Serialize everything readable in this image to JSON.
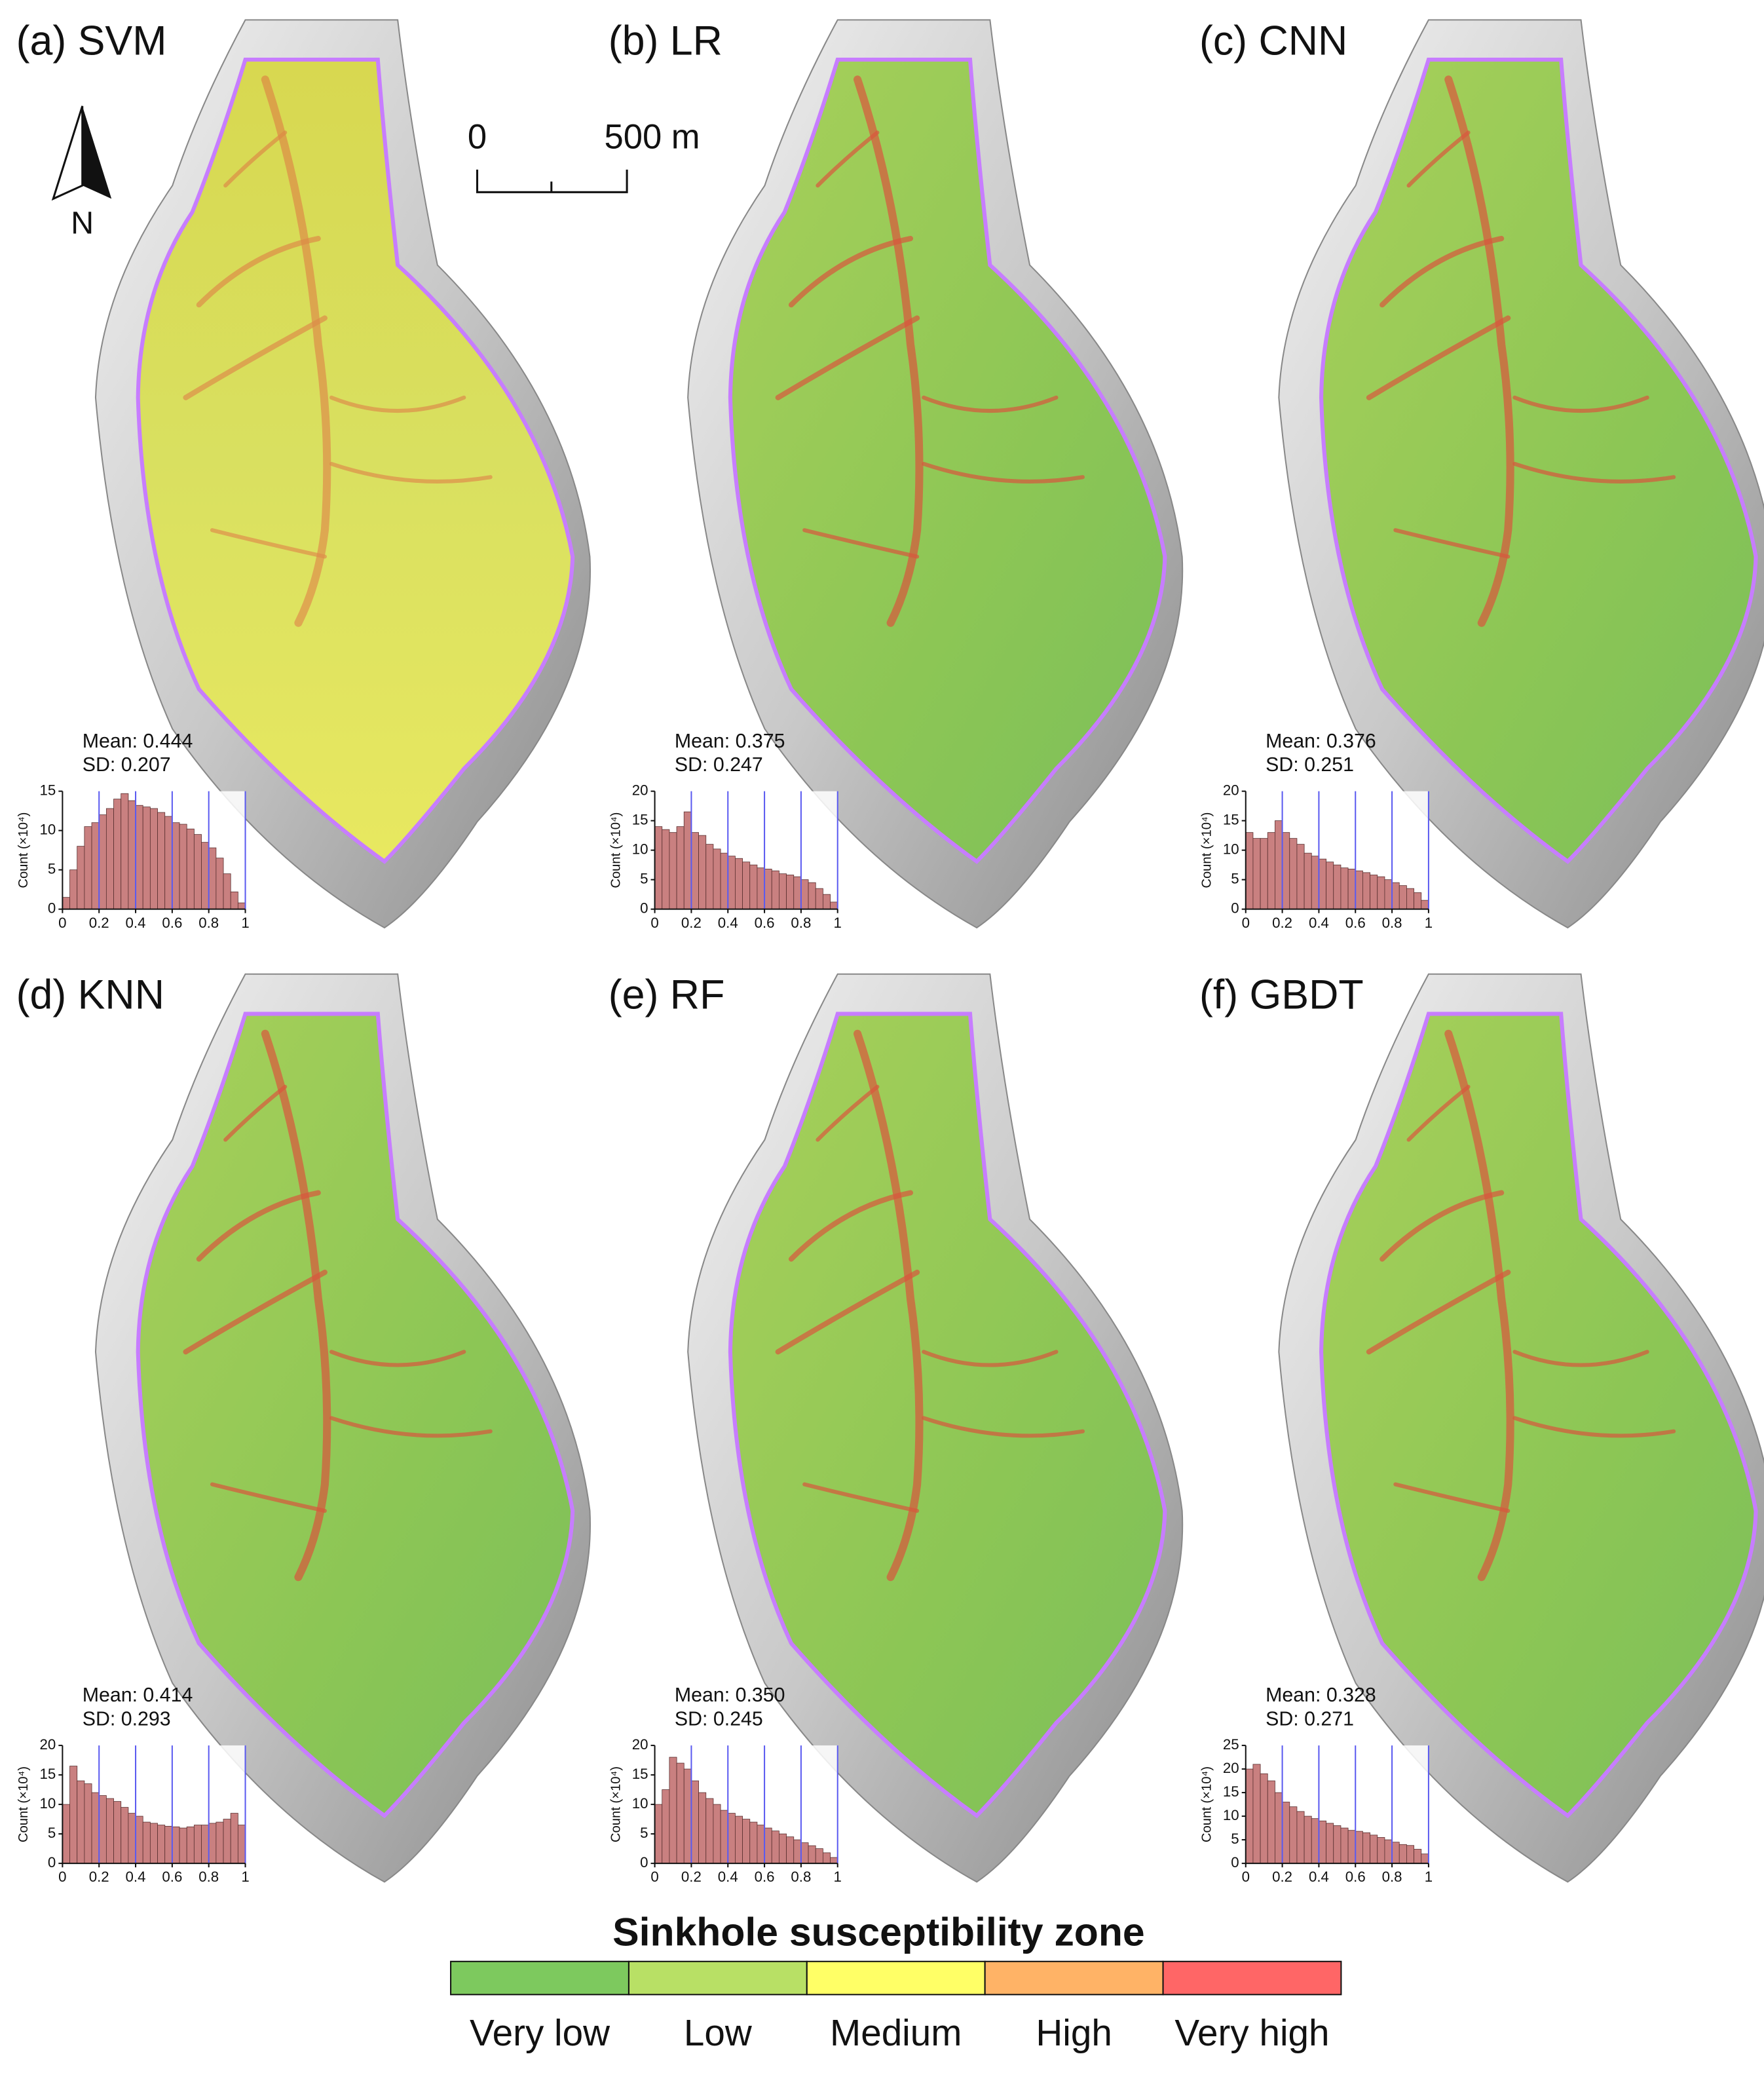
{
  "panels": [
    {
      "label": "(a) SVM",
      "mean": "Mean: 0.444",
      "sd": "SD: 0.207",
      "histogram": {
        "type": "histogram",
        "y_label": "Count (×10⁴)",
        "bins": [
          0,
          0.04,
          0.08,
          0.12,
          0.16,
          0.2,
          0.24,
          0.28,
          0.32,
          0.36,
          0.4,
          0.44,
          0.48,
          0.52,
          0.56,
          0.6,
          0.64,
          0.68,
          0.72,
          0.76,
          0.8,
          0.84,
          0.88,
          0.92,
          0.96,
          1
        ],
        "counts": [
          1.5,
          5,
          8,
          10.5,
          11,
          12,
          12.8,
          14,
          14.7,
          13.8,
          13.2,
          13,
          12.8,
          12.3,
          11.8,
          11,
          10.8,
          10.2,
          9.5,
          8.5,
          7.8,
          6.5,
          4.5,
          2.2,
          0.8
        ],
        "color": "#c98080",
        "xlim": [
          0,
          1
        ],
        "xticks": [
          0,
          0.2,
          0.4,
          0.6,
          0.8,
          1
        ],
        "ylim": [
          0,
          15
        ],
        "yticks": [
          0,
          5,
          10,
          15
        ],
        "breaks": [
          0.2,
          0.4,
          0.6,
          0.8,
          1
        ],
        "break_color": "#5a5af0"
      }
    },
    {
      "label": "(b) LR",
      "mean": "Mean: 0.375",
      "sd": "SD: 0.247",
      "histogram": {
        "type": "histogram",
        "y_label": "Count (×10⁴)",
        "bins": [
          0,
          0.04,
          0.08,
          0.12,
          0.16,
          0.2,
          0.24,
          0.28,
          0.32,
          0.36,
          0.4,
          0.44,
          0.48,
          0.52,
          0.56,
          0.6,
          0.64,
          0.68,
          0.72,
          0.76,
          0.8,
          0.84,
          0.88,
          0.92,
          0.96,
          1
        ],
        "counts": [
          14,
          13.5,
          13,
          14,
          16.5,
          13,
          12.5,
          11,
          10.2,
          9.5,
          9,
          8.6,
          8,
          7.5,
          7,
          6.8,
          6.5,
          6,
          5.8,
          5.5,
          5,
          4.5,
          3.5,
          2.5,
          1.2
        ],
        "color": "#c98080",
        "xlim": [
          0,
          1
        ],
        "xticks": [
          0,
          0.2,
          0.4,
          0.6,
          0.8,
          1
        ],
        "ylim": [
          0,
          20
        ],
        "yticks": [
          0,
          5,
          10,
          15,
          20
        ],
        "breaks": [
          0.2,
          0.4,
          0.6,
          0.8,
          1
        ],
        "break_color": "#5a5af0"
      }
    },
    {
      "label": "(c) CNN",
      "mean": "Mean: 0.376",
      "sd": "SD: 0.251",
      "histogram": {
        "type": "histogram",
        "y_label": "Count (×10⁴)",
        "bins": [
          0,
          0.04,
          0.08,
          0.12,
          0.16,
          0.2,
          0.24,
          0.28,
          0.32,
          0.36,
          0.4,
          0.44,
          0.48,
          0.52,
          0.56,
          0.6,
          0.64,
          0.68,
          0.72,
          0.76,
          0.8,
          0.84,
          0.88,
          0.92,
          0.96,
          1
        ],
        "counts": [
          13,
          12,
          12,
          13,
          15,
          13,
          12,
          11,
          9.5,
          9,
          8.5,
          8,
          7.5,
          7,
          6.8,
          6.5,
          6.2,
          5.8,
          5.5,
          5,
          4.5,
          4,
          3.5,
          2.8,
          1.5
        ],
        "color": "#c98080",
        "xlim": [
          0,
          1
        ],
        "xticks": [
          0,
          0.2,
          0.4,
          0.6,
          0.8,
          1
        ],
        "ylim": [
          0,
          20
        ],
        "yticks": [
          0,
          5,
          10,
          15,
          20
        ],
        "breaks": [
          0.2,
          0.4,
          0.6,
          0.8,
          1
        ],
        "break_color": "#5a5af0"
      }
    },
    {
      "label": "(d) KNN",
      "mean": "Mean: 0.414",
      "sd": "SD: 0.293",
      "histogram": {
        "type": "histogram",
        "y_label": "Count (×10⁴)",
        "bins": [
          0,
          0.04,
          0.08,
          0.12,
          0.16,
          0.2,
          0.24,
          0.28,
          0.32,
          0.36,
          0.4,
          0.44,
          0.48,
          0.52,
          0.56,
          0.6,
          0.64,
          0.68,
          0.72,
          0.76,
          0.8,
          0.84,
          0.88,
          0.92,
          0.96,
          1
        ],
        "counts": [
          10,
          16.5,
          14,
          13.5,
          12,
          11.5,
          11,
          10.5,
          9.5,
          8.5,
          8,
          7,
          6.8,
          6.5,
          6.3,
          6.2,
          6,
          6.2,
          6.5,
          6.5,
          6.8,
          7,
          7.5,
          8.5,
          6.5
        ],
        "color": "#c98080",
        "xlim": [
          0,
          1
        ],
        "xticks": [
          0,
          0.2,
          0.4,
          0.6,
          0.8,
          1
        ],
        "ylim": [
          0,
          20
        ],
        "yticks": [
          0,
          5,
          10,
          15,
          20
        ],
        "breaks": [
          0.2,
          0.4,
          0.6,
          0.8,
          1
        ],
        "break_color": "#5a5af0"
      }
    },
    {
      "label": "(e) RF",
      "mean": "Mean: 0.350",
      "sd": "SD: 0.245",
      "histogram": {
        "type": "histogram",
        "y_label": "Count (×10⁴)",
        "bins": [
          0,
          0.04,
          0.08,
          0.12,
          0.16,
          0.2,
          0.24,
          0.28,
          0.32,
          0.36,
          0.4,
          0.44,
          0.48,
          0.52,
          0.56,
          0.6,
          0.64,
          0.68,
          0.72,
          0.76,
          0.8,
          0.84,
          0.88,
          0.92,
          0.96,
          1
        ],
        "counts": [
          10,
          12.5,
          18,
          17,
          16,
          14,
          12,
          11,
          10,
          9,
          8.5,
          8,
          7.5,
          7,
          6.5,
          6,
          5.5,
          5,
          4.5,
          4,
          3.5,
          3,
          2.5,
          1.8,
          1
        ],
        "color": "#c98080",
        "xlim": [
          0,
          1
        ],
        "xticks": [
          0,
          0.2,
          0.4,
          0.6,
          0.8,
          1
        ],
        "ylim": [
          0,
          20
        ],
        "yticks": [
          0,
          5,
          10,
          15,
          20
        ],
        "breaks": [
          0.2,
          0.4,
          0.6,
          0.8,
          1
        ],
        "break_color": "#5a5af0"
      }
    },
    {
      "label": "(f) GBDT",
      "mean": "Mean: 0.328",
      "sd": "SD: 0.271",
      "histogram": {
        "type": "histogram",
        "y_label": "Count (×10⁴)",
        "bins": [
          0,
          0.04,
          0.08,
          0.12,
          0.16,
          0.2,
          0.24,
          0.28,
          0.32,
          0.36,
          0.4,
          0.44,
          0.48,
          0.52,
          0.56,
          0.6,
          0.64,
          0.68,
          0.72,
          0.76,
          0.8,
          0.84,
          0.88,
          0.92,
          0.96,
          1
        ],
        "counts": [
          20,
          21,
          19,
          17.5,
          15,
          13,
          12,
          11,
          10,
          9.5,
          9,
          8.5,
          8,
          7.5,
          7,
          6.8,
          6.5,
          6,
          5.5,
          5,
          4.5,
          4,
          3.8,
          3,
          2
        ],
        "color": "#c98080",
        "xlim": [
          0,
          1
        ],
        "xticks": [
          0,
          0.2,
          0.4,
          0.6,
          0.8,
          1
        ],
        "ylim": [
          0,
          25
        ],
        "yticks": [
          0,
          5,
          10,
          15,
          20,
          25
        ],
        "breaks": [
          0.2,
          0.4,
          0.6,
          0.8,
          1
        ],
        "break_color": "#5a5af0"
      }
    }
  ],
  "north": "N",
  "scale_bar": {
    "labels": [
      "0",
      "500 m"
    ]
  },
  "legend": {
    "title": "Sinkhole susceptibility zone",
    "classes": [
      {
        "label": "Very low",
        "color": "#7dc95e"
      },
      {
        "label": "Low",
        "color": "#b8e065"
      },
      {
        "label": "Medium",
        "color": "#ffff66"
      },
      {
        "label": "High",
        "color": "#ffb366"
      },
      {
        "label": "Very high",
        "color": "#ff6666"
      }
    ]
  }
}
